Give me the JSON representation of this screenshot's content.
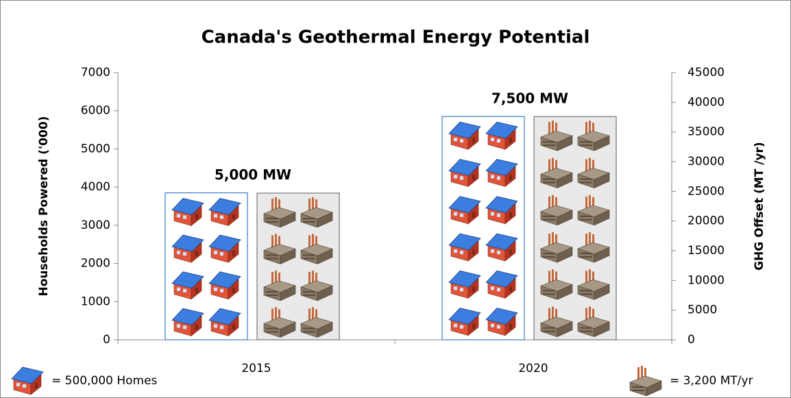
{
  "chart_data": {
    "type": "pictograph-bar",
    "title": "Canada's Geothermal Energy Potential",
    "categories": [
      "2015",
      "2020"
    ],
    "y_label": "Households Powered ('000)",
    "y2_label": "GHG Offset (MT /yr)",
    "ylim": [
      0,
      7000
    ],
    "yticks": [
      0,
      1000,
      2000,
      3000,
      4000,
      5000,
      6000,
      7000
    ],
    "y2lim": [
      0,
      45000
    ],
    "y2ticks": [
      0,
      5000,
      10000,
      15000,
      20000,
      25000,
      30000,
      35000,
      40000,
      45000
    ],
    "annotations": [
      "5,000 MW",
      "7,500 MW"
    ],
    "series": [
      {
        "name": "= 500,000 Homes",
        "color": "#4a86c8",
        "values": [
          3850,
          5850
        ]
      },
      {
        "name": "= 3,200 MT/yr",
        "color": "#7f7f7f",
        "axis": "y2",
        "values": [
          24700,
          37600
        ]
      }
    ]
  }
}
